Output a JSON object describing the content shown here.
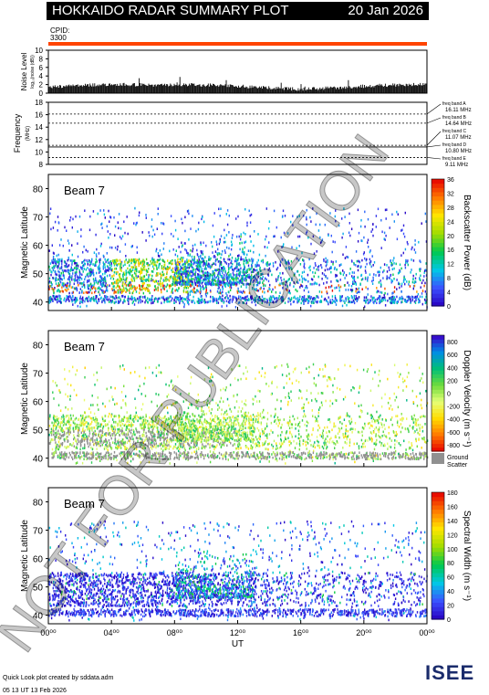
{
  "header": {
    "title": "HOKKAIDO RADAR SUMMARY PLOT",
    "date": "20 Jan 2026",
    "cpid_label": "CPID:",
    "cpid_value": "3300",
    "cpid_color": "#ff4400"
  },
  "noise_panel": {
    "ylabel": "Noise Level",
    "ylabel_sub": "log₁₀(noise (dB))",
    "yticks": [
      "0",
      "2",
      "4",
      "6",
      "8",
      "10"
    ]
  },
  "freq_panel": {
    "ylabel": "Frequency",
    "ylabel_unit": "(MHz)",
    "yticks": [
      "8",
      "10",
      "12",
      "14",
      "16",
      "18"
    ],
    "bands": [
      {
        "name": "freq band A",
        "value": "16.11 MHz"
      },
      {
        "name": "freq band B",
        "value": "14.64 MHz"
      },
      {
        "name": "freq band C",
        "value": "11.07 MHz"
      },
      {
        "name": "freq band D",
        "value": "10.80 MHz"
      },
      {
        "name": "freq band E",
        "value": "9.11 MHz"
      }
    ]
  },
  "panels": [
    {
      "beam_label": "Beam  7",
      "ylabel": "Magnetic Latitude",
      "cbar_label": "Backscatter Power (dB)",
      "cbar_ticks": [
        "0",
        "4",
        "8",
        "12",
        "16",
        "20",
        "24",
        "28",
        "32",
        "36"
      ],
      "cbar_palette": "power"
    },
    {
      "beam_label": "Beam  7",
      "ylabel": "Magnetic Latitude",
      "cbar_label": "Doppler Velocity (m s⁻¹)",
      "cbar_ticks": [
        "-800",
        "-600",
        "-400",
        "-200",
        "0",
        "200",
        "400",
        "600",
        "800"
      ],
      "cbar_palette": "velocity",
      "ground_label_1": "Ground",
      "ground_label_2": "Scatter"
    },
    {
      "beam_label": "Beam  7",
      "ylabel": "Magnetic Latitude",
      "cbar_label": "Spectral Width (m s⁻¹)",
      "cbar_ticks": [
        "0",
        "20",
        "40",
        "60",
        "80",
        "100",
        "120",
        "140",
        "160",
        "180"
      ],
      "cbar_palette": "width"
    }
  ],
  "lat_ticks": [
    "40",
    "50",
    "60",
    "70",
    "80"
  ],
  "xaxis": {
    "label": "UT",
    "ticks": [
      "00⁰⁰",
      "04⁰⁰",
      "08⁰⁰",
      "12⁰⁰",
      "16⁰⁰",
      "20⁰⁰",
      "00⁰⁰"
    ]
  },
  "footer": {
    "line1": "Quick Look plot created by sddata.adm",
    "line2": "05 13 UT 13 Feb 2026",
    "logo_text": "ISEE"
  },
  "watermark": "NOT FOR PUBLICATION",
  "chart_data": {
    "type": "heatmap",
    "title": "HOKKAIDO RADAR SUMMARY PLOT",
    "xlabel": "UT",
    "ylabel": "Magnetic Latitude",
    "xlim": [
      0,
      24
    ],
    "ylim": [
      37,
      85
    ],
    "x_ticks_hours": [
      0,
      4,
      8,
      12,
      16,
      20,
      24
    ],
    "lat_ticks": [
      40,
      50,
      60,
      70,
      80
    ],
    "panels": [
      {
        "name": "Backscatter Power (dB)",
        "range": [
          0,
          36
        ]
      },
      {
        "name": "Doppler Velocity (m s⁻¹)",
        "range": [
          -800,
          800
        ]
      },
      {
        "name": "Spectral Width (m s⁻¹)",
        "range": [
          0,
          180
        ]
      }
    ],
    "frequency_bands_mhz": [
      16.11,
      14.64,
      11.07,
      10.8,
      9.11
    ],
    "noise_ylim": [
      0,
      10
    ],
    "freq_ylim": [
      8,
      18
    ]
  }
}
